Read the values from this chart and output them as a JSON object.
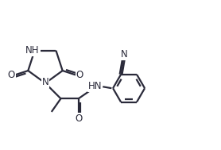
{
  "background_color": "#ffffff",
  "line_color": "#2a2a3a",
  "bond_lw": 1.6,
  "font_size": 8.5,
  "figsize": [
    2.78,
    1.89
  ],
  "dpi": 100,
  "xlim": [
    0,
    10
  ],
  "ylim": [
    0,
    6.8
  ]
}
